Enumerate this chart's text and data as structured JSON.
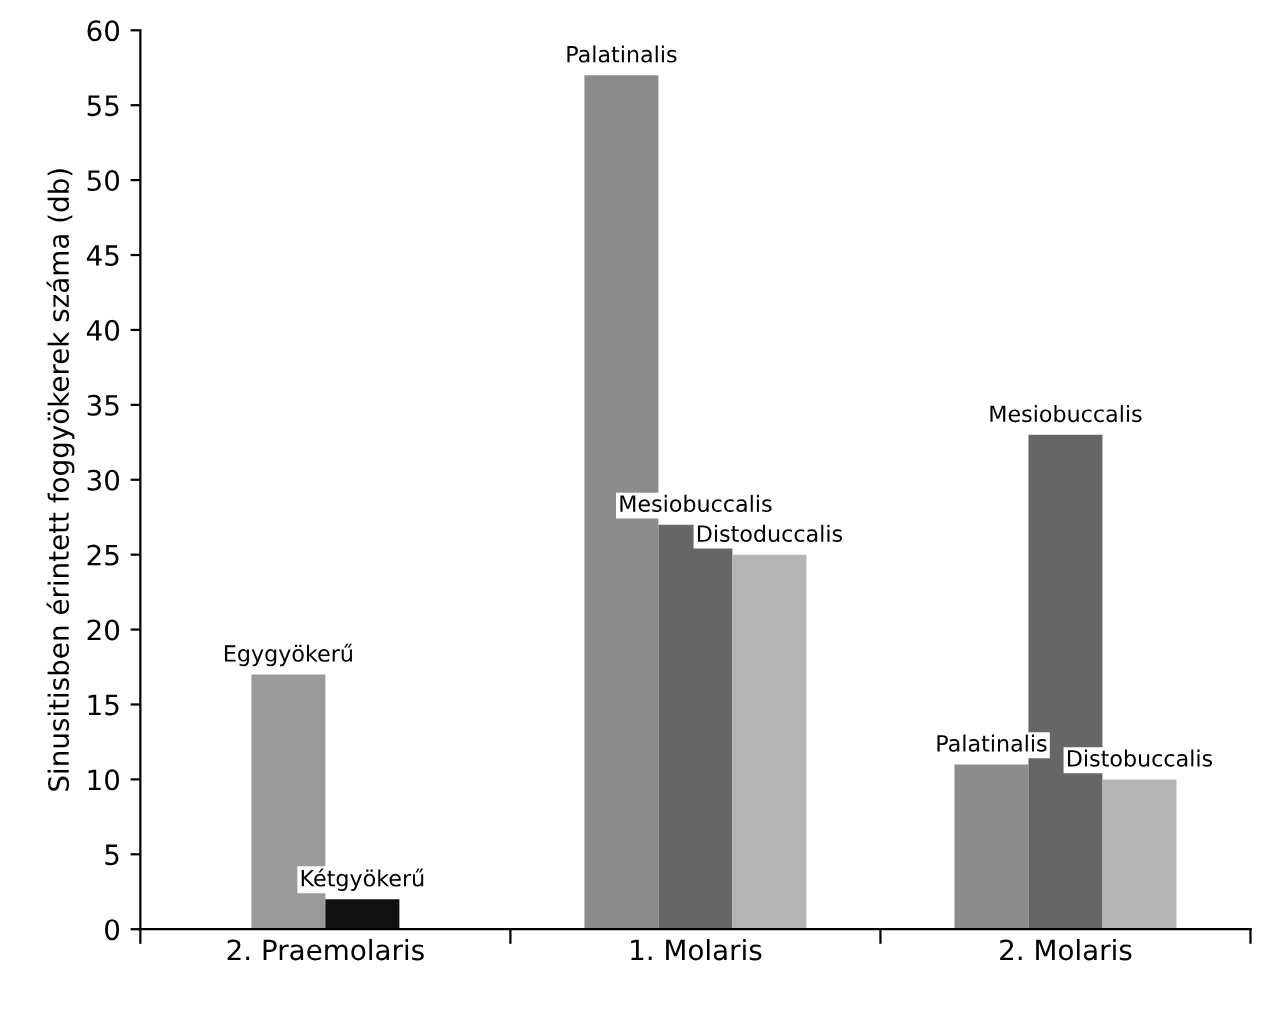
{
  "chart_data": {
    "type": "bar",
    "ylabel": "Sinusitisben érintett foggyökerek száma (db)",
    "categories": [
      "2. Praemolaris",
      "1. Molaris",
      "2. Molaris"
    ],
    "series": [
      {
        "color": "#9a9a9a",
        "values": [
          17,
          null,
          null
        ]
      },
      {
        "color": "#111111",
        "values": [
          2,
          null,
          null
        ]
      },
      {
        "color": "#8c8c8c",
        "values": [
          null,
          57,
          11
        ]
      },
      {
        "color": "#666666",
        "values": [
          null,
          27,
          33
        ]
      },
      {
        "color": "#b4b4b4",
        "values": [
          null,
          25,
          10
        ]
      }
    ],
    "ylim": [
      0,
      60
    ],
    "yticks": [
      0,
      5,
      10,
      15,
      20,
      25,
      30,
      35,
      40,
      45,
      50,
      55,
      60
    ],
    "grid": false,
    "legend": false,
    "annotations": [
      "Egygyökerű",
      "Kétgyökerű",
      "Palatinalis",
      "Mesiobuccalis",
      "Distoduccalis",
      "Palatinalis",
      "Mesiobuccalis",
      "Distobuccalis"
    ]
  }
}
